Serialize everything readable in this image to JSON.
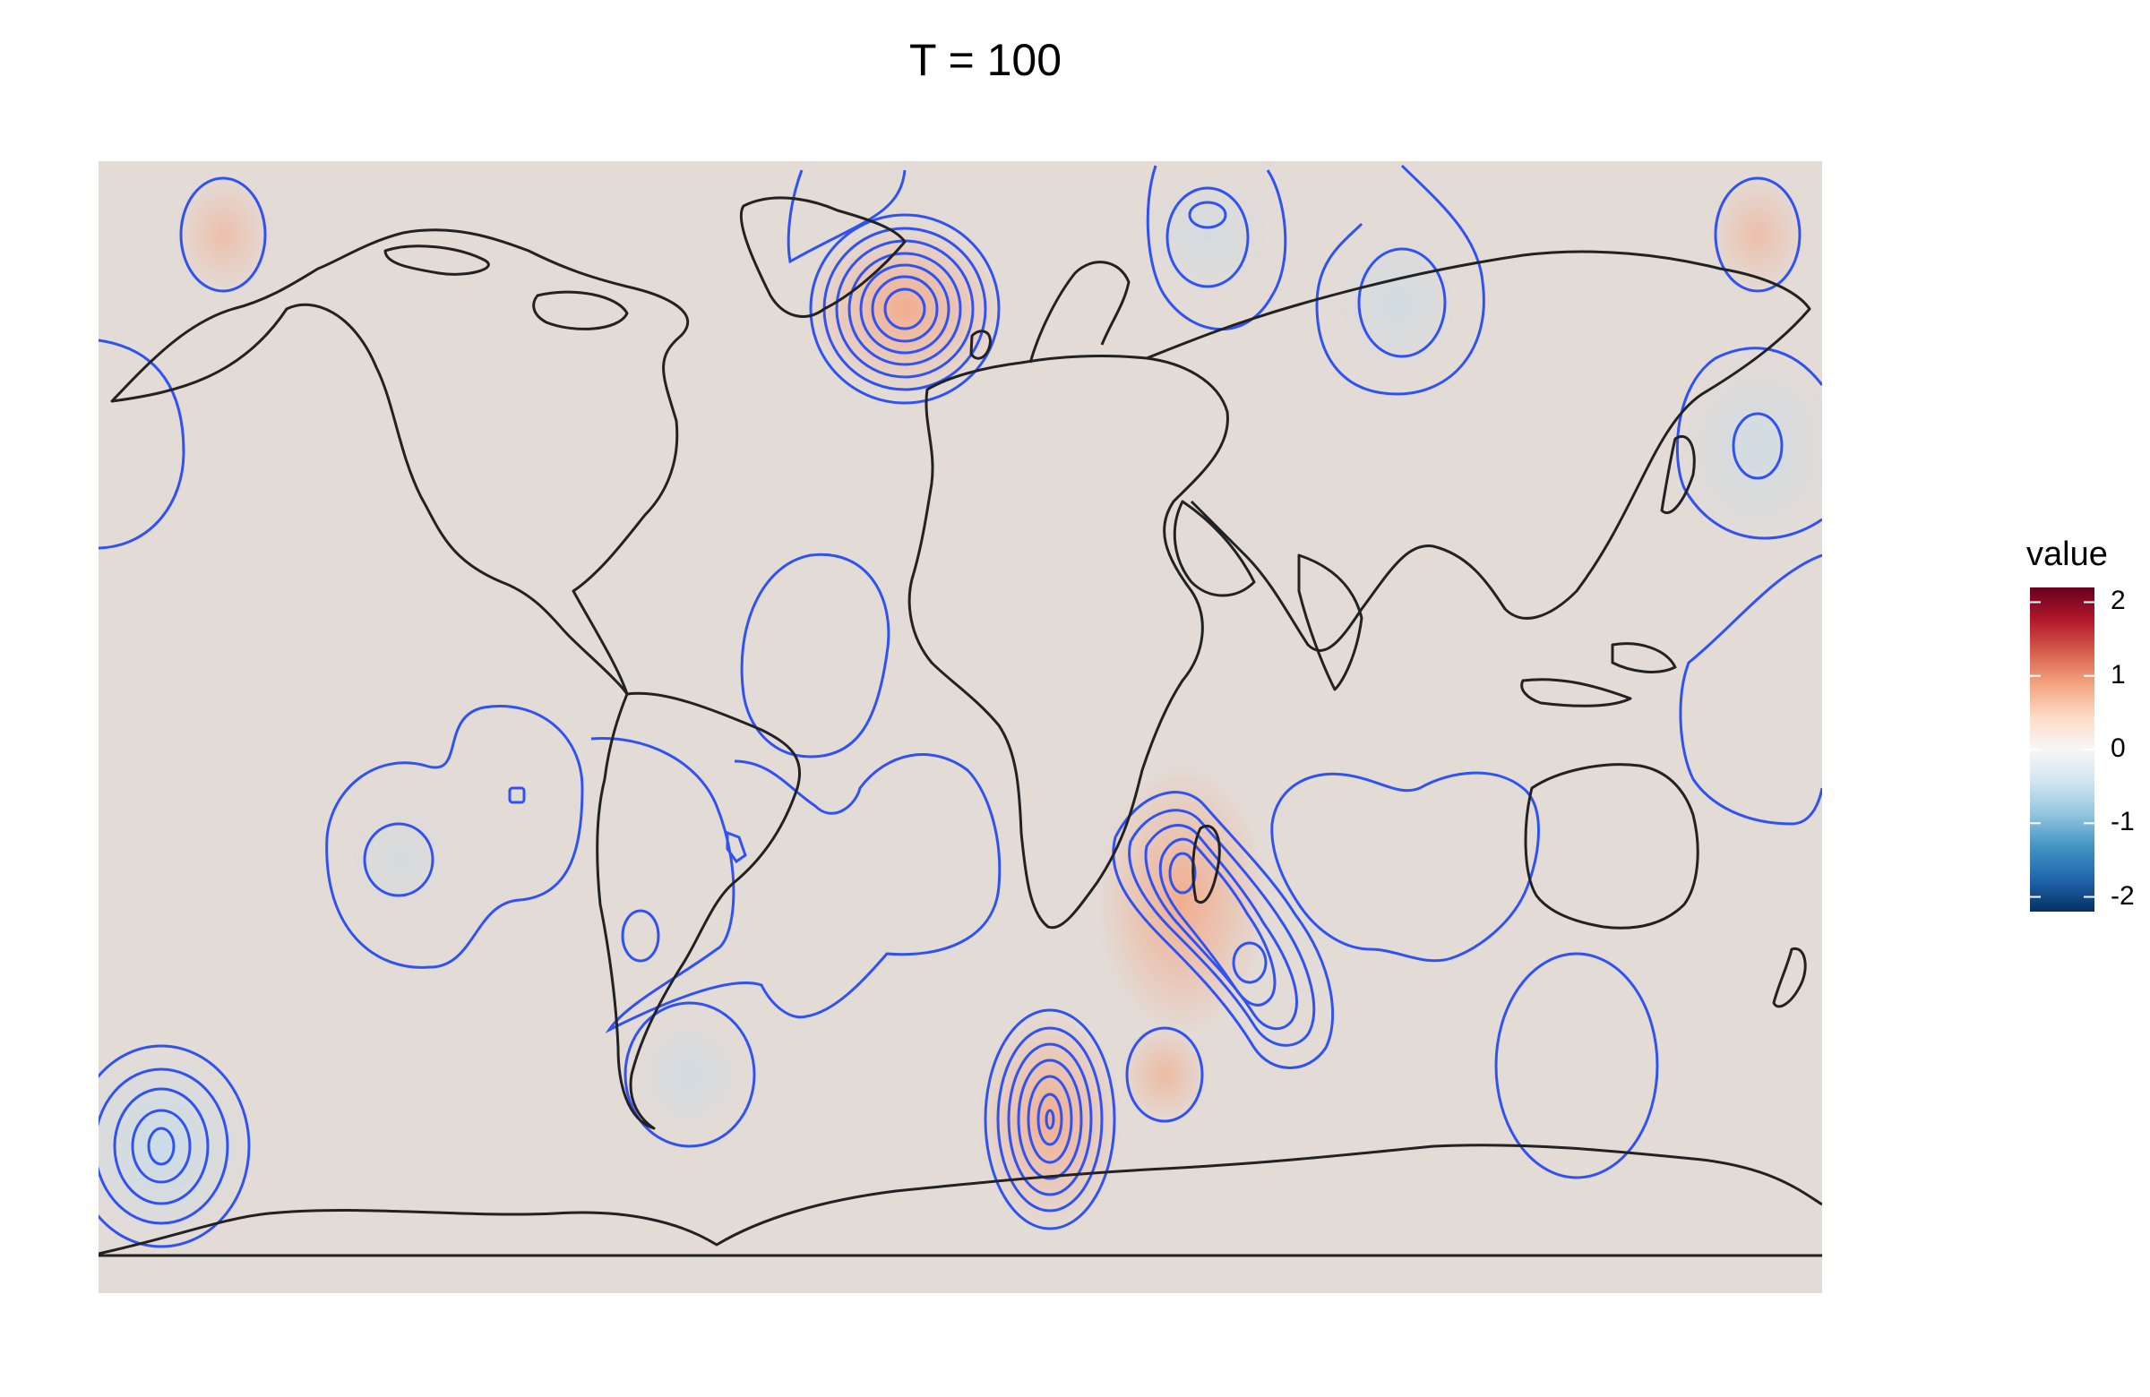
{
  "title": "T = 100",
  "legend": {
    "title": "value",
    "ticks": [
      {
        "label": "2",
        "value": 2
      },
      {
        "label": "1",
        "value": 1
      },
      {
        "label": "0",
        "value": 0
      },
      {
        "label": "-1",
        "value": -1
      },
      {
        "label": "-2",
        "value": -2
      }
    ],
    "range": [
      -2.2,
      2.2
    ],
    "palette": [
      "#053061",
      "#2166ac",
      "#4393c3",
      "#92c5de",
      "#d1e5f0",
      "#f7f7f7",
      "#fddbc7",
      "#f4a582",
      "#d6604d",
      "#b2182b",
      "#67001f"
    ]
  },
  "colors": {
    "panel_background": "#e3dbd6",
    "contour": "#3152f2",
    "coastline": "#222222"
  }
}
